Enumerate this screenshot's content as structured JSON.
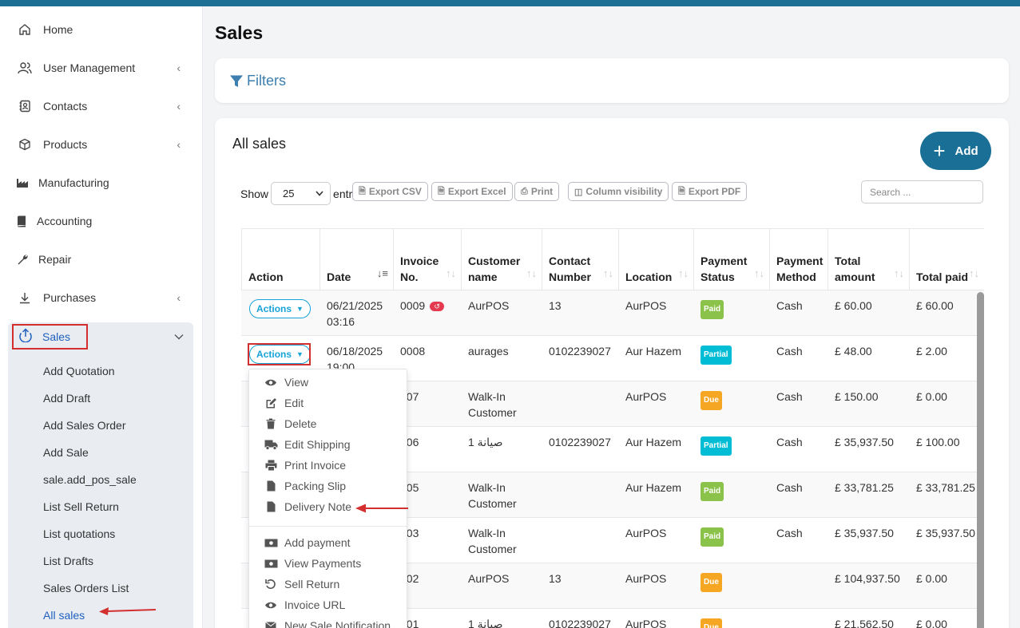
{
  "sidebar": {
    "items": [
      {
        "label": "Home",
        "icon": "home-icon"
      },
      {
        "label": "User Management",
        "icon": "users-icon"
      },
      {
        "label": "Contacts",
        "icon": "contacts-icon"
      },
      {
        "label": "Products",
        "icon": "cube-icon"
      },
      {
        "label": "Manufacturing",
        "icon": "factory-icon"
      },
      {
        "label": "Accounting",
        "icon": "book-icon"
      },
      {
        "label": "Repair",
        "icon": "wrench-icon"
      },
      {
        "label": "Purchases",
        "icon": "download-icon"
      }
    ],
    "sales": {
      "label": "Sales",
      "sub_items": [
        "Add Quotation",
        "Add Draft",
        "Add Sales Order",
        "Add Sale",
        "sale.add_pos_sale",
        "List Sell Return",
        "List quotations",
        "List Drafts",
        "Sales Orders List",
        "All sales"
      ]
    }
  },
  "page": {
    "title": "Sales"
  },
  "filters": {
    "label": "Filters"
  },
  "sales_card": {
    "title": "All sales",
    "add_label": "Add",
    "show_label": "Show",
    "entries_value": "25",
    "entries_label": "entries",
    "buttons": [
      "Export CSV",
      "Export Excel",
      "Print",
      "Column visibility",
      "Export PDF"
    ],
    "search_placeholder": "Search ..."
  },
  "table": {
    "headers": [
      "Action",
      "Date",
      "Invoice No.",
      "Customer name",
      "Contact Number",
      "Location",
      "Payment Status",
      "Payment Method",
      "Total amount",
      "Total paid"
    ],
    "action_label": "Actions",
    "rows": [
      {
        "date": "06/21/2025 03:16",
        "invoice": "0009",
        "customer": "AurPOS",
        "contact": "13",
        "location": "AurPOS",
        "status": "Paid",
        "method": "Cash",
        "total": "£ 60.00",
        "paid": "£ 60.00"
      },
      {
        "date": "06/18/2025 19:00",
        "invoice": "0008",
        "customer": "aurages",
        "contact": "0102239027",
        "location": "Aur Hazem",
        "status": "Partial",
        "method": "Cash",
        "total": "£ 48.00",
        "paid": "£ 2.00"
      },
      {
        "date": "",
        "invoice": "007",
        "customer": "Walk-In Customer",
        "contact": "",
        "location": "AurPOS",
        "status": "Due",
        "method": "Cash",
        "total": "£ 150.00",
        "paid": "£ 0.00"
      },
      {
        "date": "",
        "invoice": "006",
        "customer": "صيانة 1",
        "contact": "0102239027",
        "location": "Aur Hazem",
        "status": "Partial",
        "method": "Cash",
        "total": "£ 35,937.50",
        "paid": "£ 100.00"
      },
      {
        "date": "",
        "invoice": "005",
        "customer": "Walk-In Customer",
        "contact": "",
        "location": "Aur Hazem",
        "status": "Paid",
        "method": "Cash",
        "total": "£ 33,781.25",
        "paid": "£ 33,781.25"
      },
      {
        "date": "",
        "invoice": "003",
        "customer": "Walk-In Customer",
        "contact": "",
        "location": "AurPOS",
        "status": "Paid",
        "method": "Cash",
        "total": "£ 35,937.50",
        "paid": "£ 35,937.50"
      },
      {
        "date": "",
        "invoice": "002",
        "customer": "AurPOS",
        "contact": "13",
        "location": "AurPOS",
        "status": "Due",
        "method": "",
        "total": "£ 104,937.50",
        "paid": "£ 0.00"
      },
      {
        "date": "",
        "invoice": "001",
        "customer": "صيانة 1",
        "contact": "0102239027",
        "location": "AurPOS",
        "status": "Due",
        "method": "",
        "total": "£ 21,562.50",
        "paid": "£ 0.00"
      }
    ]
  },
  "dropdown": {
    "items": [
      {
        "label": "View",
        "icon": "eye-icon"
      },
      {
        "label": "Edit",
        "icon": "edit-icon"
      },
      {
        "label": "Delete",
        "icon": "trash-icon"
      },
      {
        "label": "Edit Shipping",
        "icon": "truck-icon"
      },
      {
        "label": "Print Invoice",
        "icon": "print-icon"
      },
      {
        "label": "Packing Slip",
        "icon": "file-icon"
      },
      {
        "label": "Delivery Note",
        "icon": "file-icon"
      },
      {
        "label": "Add payment",
        "icon": "money-icon"
      },
      {
        "label": "View Payments",
        "icon": "money-icon"
      },
      {
        "label": "Sell Return",
        "icon": "undo-icon"
      },
      {
        "label": "Invoice URL",
        "icon": "eye-icon"
      },
      {
        "label": "New Sale Notification",
        "icon": "envelope-icon"
      }
    ]
  },
  "colors": {
    "accent": "#1a6f96",
    "highlight": "#d32f2f",
    "paid": "#8bc34a",
    "partial": "#00bcd4",
    "due": "#f5a623"
  }
}
